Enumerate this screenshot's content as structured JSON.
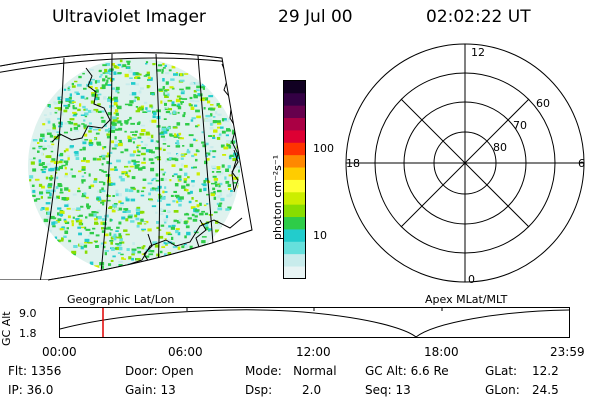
{
  "header": {
    "title": "Ultraviolet Imager",
    "date": "29 Jul 00",
    "time": "02:02:22 UT"
  },
  "colorbar": {
    "label": "photon cm⁻²s⁻¹",
    "tick_100": "100",
    "tick_10": "10",
    "scale": "log",
    "colors": [
      "#e8f4f4",
      "#c8ecec",
      "#66e0dc",
      "#22cccc",
      "#2ecc48",
      "#88dd00",
      "#ccee00",
      "#ffff33",
      "#ffcc00",
      "#ff8800",
      "#ff3300",
      "#dd0033",
      "#aa0044",
      "#66004d",
      "#330044",
      "#110022"
    ]
  },
  "polar": {
    "top_label": "12",
    "left_label": "18",
    "right_label": "6",
    "bottom_label": "0",
    "ring_60": "60",
    "ring_70": "70",
    "ring_80": "80"
  },
  "panel_labels": {
    "left": "Geographic Lat/Lon",
    "right": "Apex MLat/MLT"
  },
  "altitude_plot": {
    "axis_label": "GC Alt",
    "y_max": "9.0",
    "y_min": "1.8",
    "x_ticks": [
      "00:00",
      "06:00",
      "12:00",
      "18:00",
      "23:59"
    ],
    "marker_time": "02:02",
    "colors": {
      "marker": "#e00000"
    }
  },
  "info": {
    "flt": "Flt: 1356",
    "ip": "IP: 36.0",
    "door": "Door: Open",
    "gain": "Gain: 13",
    "mode": "Mode:   Normal",
    "dsp_label": "Dsp:",
    "dsp_value": "2.0",
    "gc_alt": "GC Alt: 6.6 Re",
    "seq": "Seq: 13",
    "glat_label": "GLat:",
    "glat_value": "12.2",
    "glon_label": "GLon:",
    "glon_value": "24.5"
  }
}
